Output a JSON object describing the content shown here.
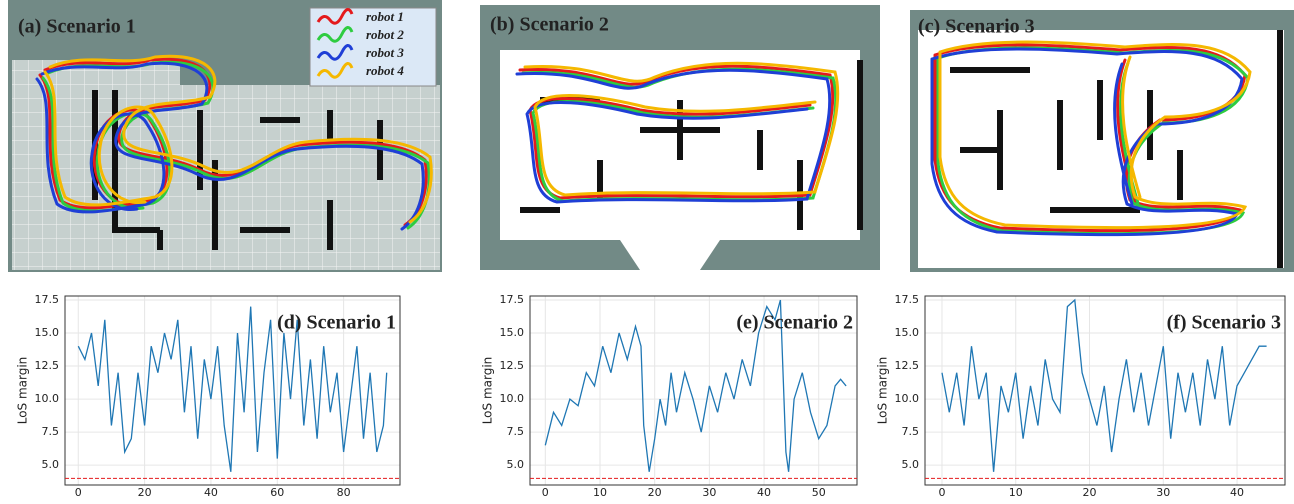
{
  "maps": [
    {
      "title": "(a) Scenario 1"
    },
    {
      "title": "(b) Scenario 2"
    },
    {
      "title": "(c) Scenario 3"
    }
  ],
  "legend": [
    {
      "name": "robot 1",
      "color": "#e41a1c"
    },
    {
      "name": "robot 2",
      "color": "#2ecc40"
    },
    {
      "name": "robot 3",
      "color": "#1f3fd6"
    },
    {
      "name": "robot 4",
      "color": "#f5b800"
    }
  ],
  "chart_data": [
    {
      "type": "line",
      "title": "(d) Scenario 1",
      "ylabel": "LoS margin",
      "color": "#1f77b4",
      "threshold": 4,
      "threshold_color": "#e41a1c",
      "grid": true,
      "xlim": [
        -4,
        97
      ],
      "xticks": [
        0,
        20,
        40,
        60,
        80
      ],
      "ylim": [
        3.5,
        17.8
      ],
      "yticks": [
        {
          "value": 5,
          "label": "5.0"
        },
        7.5,
        {
          "value": 10,
          "label": "10.0"
        },
        12.5,
        {
          "value": 15,
          "label": "15.0"
        },
        17.5
      ],
      "x": [
        0,
        2,
        4,
        6,
        8,
        10,
        12,
        14,
        16,
        18,
        20,
        22,
        24,
        26,
        28,
        30,
        32,
        34,
        36,
        38,
        40,
        42,
        44,
        46,
        48,
        50,
        52,
        54,
        56,
        58,
        60,
        62,
        64,
        66,
        68,
        70,
        72,
        74,
        76,
        78,
        80,
        82,
        84,
        86,
        88,
        90,
        92,
        93
      ],
      "values": [
        14,
        13,
        15,
        11,
        16,
        8,
        12,
        6,
        7,
        12,
        8,
        14,
        12,
        15,
        13,
        16,
        9,
        14,
        7,
        13,
        10,
        14,
        8,
        4.5,
        15,
        9,
        17,
        6,
        12,
        16,
        5.5,
        15,
        10,
        16,
        8,
        13,
        7,
        14,
        9,
        12,
        6,
        10,
        14,
        7,
        12,
        6,
        8,
        12
      ]
    },
    {
      "type": "line",
      "title": "(e) Scenario 2",
      "ylabel": "LoS margin",
      "color": "#1f77b4",
      "threshold": 4,
      "threshold_color": "#e41a1c",
      "grid": true,
      "xlim": [
        -2.8,
        57
      ],
      "xticks": [
        0,
        10,
        20,
        30,
        40,
        50
      ],
      "ylim": [
        3.5,
        17.8
      ],
      "yticks": [
        {
          "value": 5,
          "label": "5.0"
        },
        7.5,
        {
          "value": 10,
          "label": "10.0"
        },
        12.5,
        {
          "value": 15,
          "label": "15.0"
        },
        17.5
      ],
      "x": [
        0,
        1.5,
        3,
        4.5,
        6,
        7.5,
        9,
        10.5,
        12,
        13.5,
        15,
        16.5,
        17.5,
        18,
        19,
        20,
        21,
        22,
        23,
        24,
        25.5,
        27,
        28.5,
        30,
        31.5,
        33,
        34.5,
        36,
        37.5,
        39,
        40.5,
        42,
        43,
        44,
        44.5,
        45.5,
        47,
        48.5,
        50,
        51.5,
        53,
        54,
        55
      ],
      "values": [
        6.5,
        9,
        8,
        10,
        9.5,
        12,
        11,
        14,
        12,
        15,
        13,
        15.5,
        14,
        8,
        4.5,
        7,
        10,
        8,
        12,
        9,
        12,
        10,
        7.5,
        11,
        9,
        12,
        10,
        13,
        11,
        15,
        17,
        16,
        17.5,
        6,
        4.5,
        10,
        12,
        9,
        7,
        8,
        11,
        11.5,
        11
      ]
    },
    {
      "type": "line",
      "title": "(f) Scenario 3",
      "ylabel": "LoS margin",
      "color": "#1f77b4",
      "threshold": 4,
      "threshold_color": "#e41a1c",
      "grid": true,
      "xlim": [
        -2.3,
        46.5
      ],
      "xticks": [
        0,
        10,
        20,
        30,
        40
      ],
      "ylim": [
        3.5,
        17.8
      ],
      "yticks": [
        {
          "value": 5,
          "label": "5.0"
        },
        7.5,
        {
          "value": 10,
          "label": "10.0"
        },
        12.5,
        {
          "value": 15,
          "label": "15.0"
        },
        17.5
      ],
      "x": [
        0,
        1,
        2,
        3,
        4,
        5,
        6,
        7,
        8,
        9,
        10,
        11,
        12,
        13,
        14,
        15,
        16,
        17,
        18,
        19,
        20,
        21,
        22,
        23,
        24,
        25,
        26,
        27,
        28,
        29,
        30,
        31,
        32,
        33,
        34,
        35,
        36,
        37,
        38,
        39,
        40,
        41,
        42,
        43,
        44
      ],
      "values": [
        12,
        9,
        12,
        8,
        14,
        10,
        12,
        4.5,
        11,
        9,
        12,
        7,
        11,
        8,
        13,
        10,
        9,
        17,
        17.5,
        12,
        10,
        8,
        11,
        6,
        10,
        13,
        9,
        12,
        8,
        11,
        14,
        7,
        12,
        9,
        12,
        8,
        13,
        10,
        14,
        8,
        11,
        12,
        13,
        14,
        14
      ]
    }
  ]
}
